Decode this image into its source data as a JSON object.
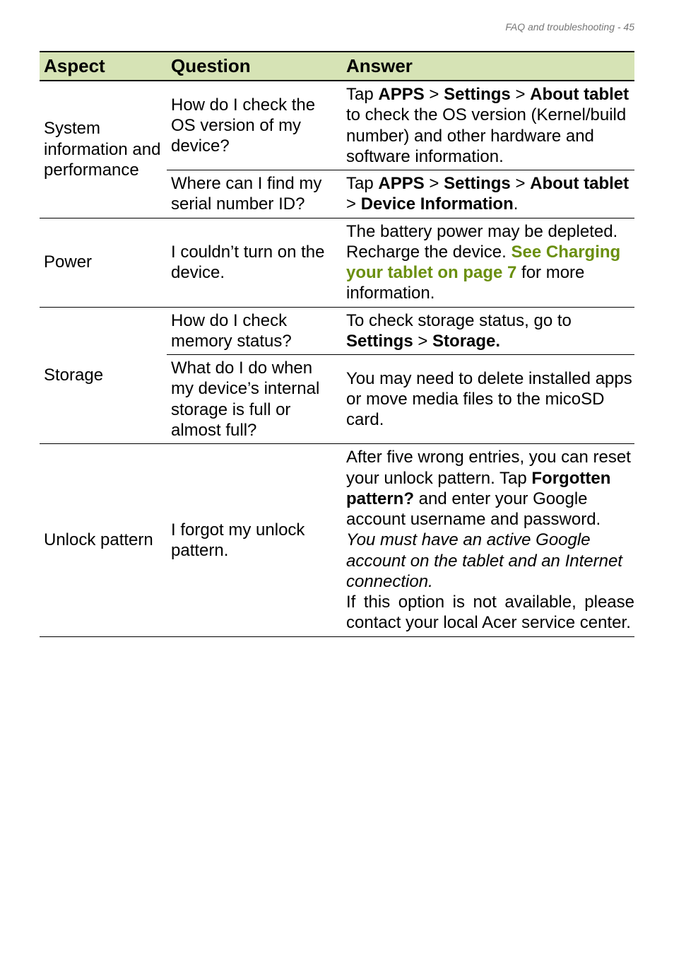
{
  "header": {
    "text": "FAQ and troubleshooting - 45"
  },
  "columns": {
    "aspect": "Aspect",
    "question": "Question",
    "answer": "Answer"
  },
  "rows": {
    "sysinfo": {
      "aspect": "System information and performance",
      "q1": "How do I check the OS version of my device?",
      "a1": {
        "pre": "Tap ",
        "b1": "APPS",
        "gt1": " > ",
        "b2": "Settings",
        "gt2": " > ",
        "b3": "About tablet",
        "post": " to check the OS version (Kernel/build number) and other hardware and software information."
      },
      "q2": "Where can I find my serial number ID?",
      "a2": {
        "pre": "Tap ",
        "b1": "APPS",
        "gt1": " > ",
        "b2": "Settings",
        "gt2": " > ",
        "b3": "About tablet",
        "gt3": " > ",
        "b4": "Device Information",
        "post": "."
      }
    },
    "power": {
      "aspect": "Power",
      "q": "I couldn’t turn on the device.",
      "a": {
        "l1": "The battery power may be depleted. Recharge the device. ",
        "link": "See Charging your tablet on page 7",
        "post": " for more information."
      }
    },
    "storage": {
      "aspect": "Storage",
      "q1": "How do I check memory status?",
      "a1": {
        "pre": "To check storage status, go to ",
        "b1": "Settings",
        "gt": " > ",
        "b2": "Storage."
      },
      "q2": "What do I do when my device’s internal storage is full or almost full?",
      "a2": "You may need to delete installed apps or move media files to the micoSD card."
    },
    "unlock": {
      "aspect": "Unlock pattern",
      "q": "I forgot my unlock pattern.",
      "a": {
        "p1": "After five wrong entries, you can reset your unlock pattern. Tap ",
        "b1": "Forgotten pattern?",
        "p2": " and enter your Google account username and password.",
        "i1": "You must have an active Google account on the tablet and an Internet connection.",
        "j1": "If this option is not available, please contact your local Acer service center."
      }
    }
  }
}
